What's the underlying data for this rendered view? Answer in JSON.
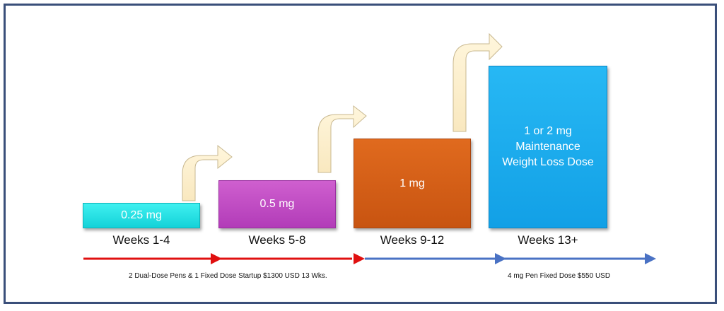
{
  "steps": [
    {
      "dose": "0.25 mg",
      "weeks": "Weeks 1-4"
    },
    {
      "dose": "0.5 mg",
      "weeks": "Weeks 5-8"
    },
    {
      "dose": "1 mg",
      "weeks": "Weeks 9-12"
    },
    {
      "dose": "1 or 2 mg Maintenance Weight Loss Dose",
      "weeks": "Weeks 13+"
    }
  ],
  "timeline": {
    "startup_note": "2 Dual-Dose Pens & 1 Fixed Dose Startup $1300 USD 13 Wks.",
    "maintenance_note": "4 mg Pen Fixed Dose $550 USD"
  },
  "colors": {
    "step1": "#1ee0e6",
    "step2": "#c04cc4",
    "step3": "#d45f16",
    "step4": "#18a9ee",
    "curved_arrow": "#fdf0cc",
    "timeline_red": "#e01010",
    "timeline_blue": "#4a72c4",
    "border": "#3a4f7a"
  }
}
